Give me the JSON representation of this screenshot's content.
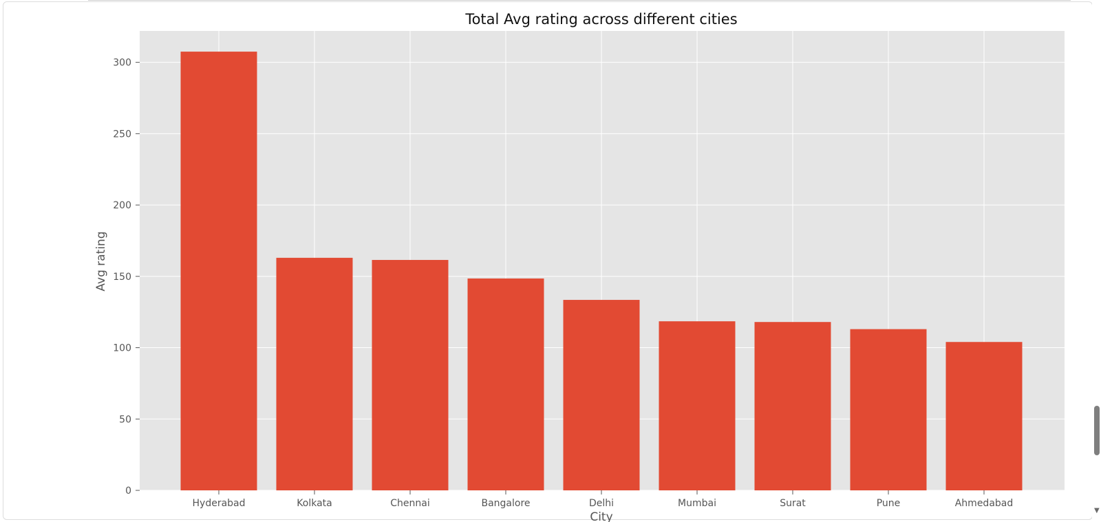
{
  "chart_data": {
    "type": "bar",
    "title": "Total Avg rating across different cities",
    "xlabel": "City",
    "ylabel": "Avg rating",
    "categories": [
      "Hyderabad",
      "Kolkata",
      "Chennai",
      "Bangalore",
      "Delhi",
      "Mumbai",
      "Surat",
      "Pune",
      "Ahmedabad"
    ],
    "values": [
      307.5,
      163,
      161.5,
      148.5,
      133.5,
      118.5,
      118,
      113,
      104
    ],
    "ylim": [
      0,
      322
    ],
    "yticks": [
      0,
      50,
      100,
      150,
      200,
      250,
      300
    ],
    "grid": true,
    "bar_color": "#e24a33",
    "plot_background": "#e5e5e5",
    "grid_color": "#ffffff"
  },
  "scrollbar": {
    "down_arrow_icon": "scroll-down-arrow-icon",
    "down_arrow_glyph": "▼"
  }
}
